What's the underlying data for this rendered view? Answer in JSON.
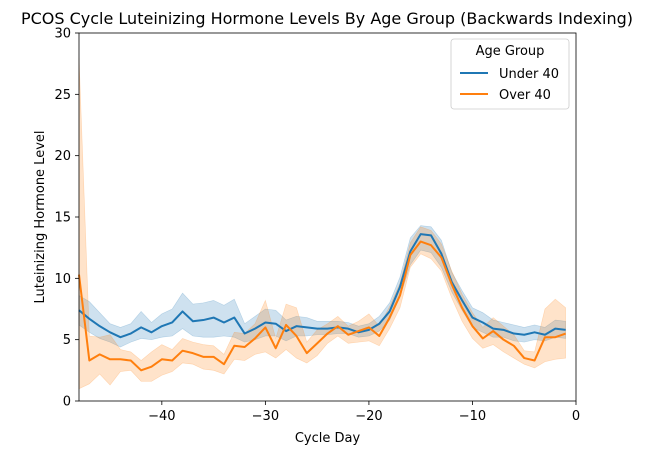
{
  "chart_data": {
    "type": "line",
    "title": "PCOS Cycle Luteinizing Hormone Levels By Age Group (Backwards Indexing)",
    "xlabel": "Cycle Day",
    "ylabel": "Luteinizing Hormone Level",
    "xlim": [
      -48,
      0
    ],
    "ylim": [
      0,
      30
    ],
    "xticks": [
      -40,
      -30,
      -20,
      -10,
      0
    ],
    "xtick_labels": [
      "−40",
      "−30",
      "−20",
      "−10",
      "0"
    ],
    "yticks": [
      0,
      5,
      10,
      15,
      20,
      25,
      30
    ],
    "ytick_labels": [
      "0",
      "5",
      "10",
      "15",
      "20",
      "25",
      "30"
    ],
    "grid": false,
    "legend": {
      "title": "Age Group",
      "position": "upper-right"
    },
    "x": [
      -48,
      -47,
      -46,
      -45,
      -44,
      -43,
      -42,
      -41,
      -40,
      -39,
      -38,
      -37,
      -36,
      -35,
      -34,
      -33,
      -32,
      -31,
      -30,
      -29,
      -28,
      -27,
      -26,
      -25,
      -24,
      -23,
      -22,
      -21,
      -20,
      -19,
      -18,
      -17,
      -16,
      -15,
      -14,
      -13,
      -12,
      -11,
      -10,
      -9,
      -8,
      -7,
      -6,
      -5,
      -4,
      -3,
      -2,
      -1
    ],
    "series": [
      {
        "name": "Under 40",
        "color": "#1f77b4",
        "values": [
          7.4,
          6.7,
          6.1,
          5.6,
          5.2,
          5.5,
          6.0,
          5.6,
          6.1,
          6.4,
          7.3,
          6.5,
          6.6,
          6.8,
          6.4,
          6.8,
          5.5,
          5.9,
          6.4,
          6.3,
          5.7,
          6.1,
          6.0,
          5.9,
          5.9,
          6.0,
          5.9,
          5.6,
          5.8,
          6.3,
          7.3,
          9.3,
          12.2,
          13.6,
          13.5,
          12.0,
          9.7,
          8.2,
          6.8,
          6.4,
          5.9,
          5.8,
          5.5,
          5.4,
          5.6,
          5.4,
          5.9,
          5.8
        ],
        "lower": [
          6.2,
          5.6,
          5.1,
          4.8,
          4.4,
          4.8,
          5.1,
          5.0,
          5.2,
          5.3,
          5.9,
          5.3,
          5.2,
          5.2,
          5.3,
          5.2,
          4.8,
          5.0,
          5.3,
          5.3,
          4.9,
          5.3,
          5.3,
          5.4,
          5.4,
          5.5,
          5.5,
          5.2,
          5.3,
          5.7,
          6.6,
          8.5,
          11.1,
          12.3,
          12.1,
          10.9,
          8.9,
          7.4,
          6.0,
          5.6,
          5.2,
          5.2,
          4.9,
          4.8,
          5.0,
          4.9,
          5.2,
          5.1
        ],
        "upper": [
          8.6,
          8.1,
          7.2,
          6.3,
          6.0,
          6.3,
          7.3,
          6.4,
          7.1,
          7.5,
          8.8,
          7.9,
          8.0,
          8.2,
          7.8,
          8.3,
          6.3,
          6.9,
          7.5,
          7.4,
          6.6,
          6.9,
          6.8,
          6.5,
          6.5,
          6.5,
          6.4,
          6.1,
          6.3,
          6.9,
          8.0,
          10.1,
          13.3,
          14.3,
          14.2,
          13.1,
          10.5,
          9.0,
          7.6,
          7.2,
          6.6,
          6.4,
          6.2,
          6.0,
          6.2,
          6.0,
          6.6,
          6.5
        ]
      },
      {
        "name": "Over 40",
        "color": "#ff7f0e",
        "values": [
          10.3,
          3.3,
          3.8,
          3.4,
          3.4,
          3.3,
          2.5,
          2.8,
          3.4,
          3.3,
          4.1,
          3.9,
          3.6,
          3.6,
          3.0,
          4.5,
          4.4,
          5.1,
          6.0,
          4.3,
          6.2,
          5.3,
          3.9,
          4.7,
          5.5,
          6.1,
          5.4,
          5.7,
          6.0,
          5.3,
          6.8,
          8.6,
          11.9,
          13.0,
          12.7,
          11.7,
          9.5,
          7.6,
          6.1,
          5.1,
          5.7,
          5.0,
          4.5,
          3.5,
          3.3,
          5.2,
          5.2,
          5.5
        ],
        "lower": [
          1.0,
          1.4,
          2.2,
          1.3,
          2.4,
          2.5,
          1.6,
          1.6,
          2.1,
          2.4,
          3.1,
          3.0,
          2.6,
          2.5,
          2.2,
          3.4,
          3.3,
          3.8,
          4.0,
          3.5,
          4.2,
          3.5,
          3.1,
          3.7,
          4.7,
          5.3,
          4.7,
          4.8,
          4.9,
          4.5,
          5.9,
          7.6,
          10.9,
          12.0,
          11.6,
          10.6,
          8.4,
          6.5,
          5.1,
          4.3,
          4.6,
          4.0,
          3.5,
          3.0,
          2.7,
          3.2,
          3.4,
          3.5
        ],
        "upper": [
          28.0,
          5.3,
          5.2,
          5.4,
          4.2,
          4.0,
          3.3,
          4.0,
          4.6,
          4.2,
          5.1,
          4.8,
          4.6,
          4.5,
          3.8,
          5.6,
          5.5,
          6.3,
          8.2,
          5.1,
          7.9,
          7.6,
          4.8,
          5.8,
          6.3,
          6.9,
          6.1,
          6.5,
          7.1,
          6.1,
          7.7,
          9.6,
          12.9,
          14.2,
          13.9,
          12.8,
          10.6,
          8.7,
          7.2,
          6.0,
          6.8,
          6.1,
          5.4,
          4.1,
          4.0,
          7.5,
          8.3,
          7.6
        ]
      }
    ]
  }
}
